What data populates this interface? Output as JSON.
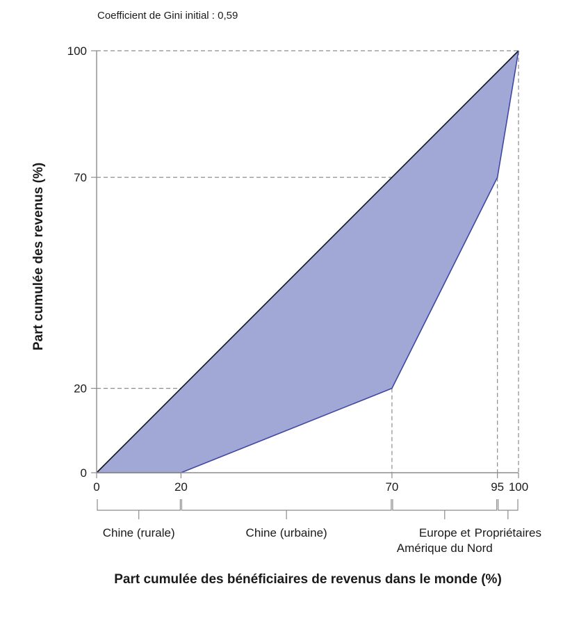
{
  "chart_data": {
    "type": "area",
    "subtitle": "Coefficient de Gini initial : 0,59",
    "xlabel": "Part cumulée des bénéficiaires de revenus dans le monde (%)",
    "ylabel": "Part cumulée des revenus (%)",
    "xlim": [
      0,
      100
    ],
    "ylim": [
      0,
      100
    ],
    "x_ticks": [
      "0",
      "20",
      "70",
      "95",
      "100"
    ],
    "y_ticks": [
      "0",
      "20",
      "70",
      "100"
    ],
    "perfect_equality_line": [
      [
        0,
        0
      ],
      [
        100,
        100
      ]
    ],
    "lorenz_curve": [
      [
        0,
        0
      ],
      [
        20,
        0
      ],
      [
        70,
        20
      ],
      [
        95,
        70
      ],
      [
        100,
        100
      ]
    ],
    "reference_lines": {
      "x": [
        70,
        95,
        100
      ],
      "y": [
        20,
        70,
        100
      ]
    },
    "groups": [
      {
        "label": "Chine (rurale)",
        "from": 0,
        "to": 20
      },
      {
        "label": "Chine (urbaine)",
        "from": 20,
        "to": 70
      },
      {
        "label": [
          "Europe et",
          "Amérique du Nord"
        ],
        "from": 70,
        "to": 95
      },
      {
        "label": "Propriétaires",
        "from": 95,
        "to": 100
      }
    ],
    "colors": {
      "fill": "#a2a8d6",
      "curve": "#3d48a6",
      "equality": "#111111",
      "reference": "#8c8c8c",
      "axis": "#8c8c8c"
    }
  }
}
